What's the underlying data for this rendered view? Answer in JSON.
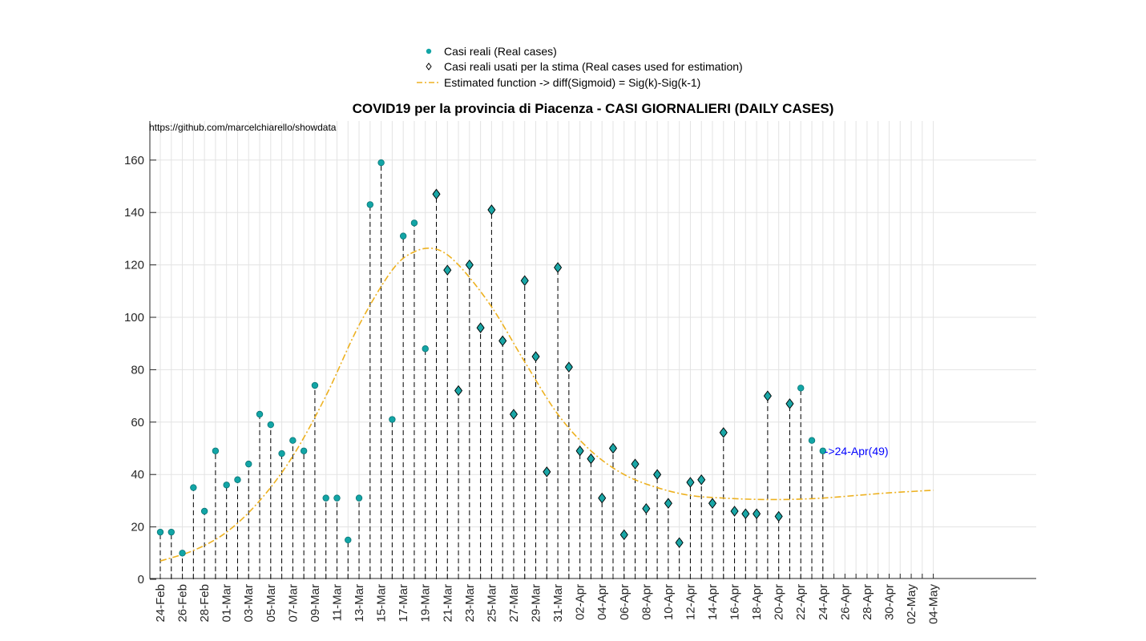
{
  "chart_data": {
    "type": "scatter",
    "title": "COVID19 per la provincia di Piacenza - CASI GIORNALIERI (DAILY CASES)",
    "source_text": "https://github.com/marcelchiarello/showdata",
    "xlabel": "",
    "ylabel": "",
    "ylim": [
      0,
      175
    ],
    "yticks": [
      0,
      20,
      40,
      60,
      80,
      100,
      120,
      140,
      160
    ],
    "grid": true,
    "legend_position": "top-center, outside plot",
    "x_start": "24-Feb",
    "x_end": "04-May",
    "x_tick_labels": [
      "24-Feb",
      "26-Feb",
      "28-Feb",
      "01-Mar",
      "03-Mar",
      "05-Mar",
      "07-Mar",
      "09-Mar",
      "11-Mar",
      "13-Mar",
      "15-Mar",
      "17-Mar",
      "19-Mar",
      "21-Mar",
      "23-Mar",
      "25-Mar",
      "27-Mar",
      "29-Mar",
      "31-Mar",
      "02-Apr",
      "04-Apr",
      "06-Apr",
      "08-Apr",
      "10-Apr",
      "12-Apr",
      "14-Apr",
      "16-Apr",
      "18-Apr",
      "20-Apr",
      "22-Apr",
      "24-Apr",
      "26-Apr",
      "28-Apr",
      "30-Apr",
      "02-May",
      "04-May"
    ],
    "legend": [
      {
        "label": "Casi reali (Real cases)",
        "marker": "dot"
      },
      {
        "label": "Casi reali usati per la stima (Real cases used for estimation)",
        "marker": "diamond"
      },
      {
        "label": "Estimated function -> diff(Sigmoid) = Sig(k)-Sig(k-1)",
        "marker": "dashdot-line"
      }
    ],
    "series": [
      {
        "name": "Casi reali (Real cases)",
        "x": [
          "24-Feb",
          "25-Feb",
          "26-Feb",
          "27-Feb",
          "28-Feb",
          "29-Feb",
          "01-Mar",
          "02-Mar",
          "03-Mar",
          "04-Mar",
          "05-Mar",
          "06-Mar",
          "07-Mar",
          "08-Mar",
          "09-Mar",
          "10-Mar",
          "11-Mar",
          "12-Mar",
          "13-Mar",
          "14-Mar",
          "15-Mar",
          "16-Mar",
          "17-Mar",
          "18-Mar",
          "19-Mar",
          "20-Mar",
          "21-Mar",
          "22-Mar",
          "23-Mar",
          "24-Mar",
          "25-Mar",
          "26-Mar",
          "27-Mar",
          "28-Mar",
          "29-Mar",
          "30-Mar",
          "31-Mar",
          "01-Apr",
          "02-Apr",
          "03-Apr",
          "04-Apr",
          "05-Apr",
          "06-Apr",
          "07-Apr",
          "08-Apr",
          "09-Apr",
          "10-Apr",
          "11-Apr",
          "12-Apr",
          "13-Apr",
          "14-Apr",
          "15-Apr",
          "16-Apr",
          "17-Apr",
          "18-Apr",
          "19-Apr",
          "20-Apr",
          "21-Apr",
          "22-Apr",
          "23-Apr",
          "24-Apr"
        ],
        "values": [
          18,
          18,
          10,
          35,
          26,
          49,
          36,
          38,
          44,
          63,
          59,
          48,
          53,
          49,
          74,
          31,
          31,
          15,
          31,
          143,
          159,
          61,
          131,
          136,
          88,
          147,
          118,
          72,
          120,
          96,
          141,
          91,
          63,
          114,
          85,
          41,
          119,
          81,
          49,
          46,
          31,
          50,
          17,
          44,
          27,
          40,
          29,
          14,
          37,
          38,
          29,
          56,
          26,
          25,
          25,
          70,
          24,
          67,
          73,
          53,
          49
        ]
      },
      {
        "name": "Casi reali usati per la stima (Real cases used for estimation)",
        "x": [
          "20-Mar",
          "21-Mar",
          "22-Mar",
          "23-Mar",
          "24-Mar",
          "25-Mar",
          "26-Mar",
          "27-Mar",
          "28-Mar",
          "29-Mar",
          "30-Mar",
          "31-Mar",
          "01-Apr",
          "02-Apr",
          "03-Apr",
          "04-Apr",
          "05-Apr",
          "06-Apr",
          "07-Apr",
          "08-Apr",
          "09-Apr",
          "10-Apr",
          "11-Apr",
          "12-Apr",
          "13-Apr",
          "14-Apr",
          "15-Apr",
          "16-Apr",
          "17-Apr",
          "18-Apr",
          "19-Apr",
          "20-Apr",
          "21-Apr"
        ],
        "values": [
          147,
          118,
          72,
          120,
          96,
          141,
          91,
          63,
          114,
          85,
          41,
          119,
          81,
          49,
          46,
          31,
          50,
          17,
          44,
          27,
          40,
          29,
          14,
          37,
          38,
          29,
          56,
          26,
          25,
          25,
          70,
          24,
          67
        ]
      },
      {
        "name": "Estimated function -> diff(Sigmoid) = Sig(k)-Sig(k-1)",
        "x": [
          "24-Feb",
          "27-Feb",
          "01-Mar",
          "04-Mar",
          "07-Mar",
          "10-Mar",
          "13-Mar",
          "16-Mar",
          "18-Mar",
          "20-Mar",
          "22-Mar",
          "25-Mar",
          "28-Mar",
          "31-Mar",
          "03-Apr",
          "06-Apr",
          "09-Apr",
          "12-Apr",
          "15-Apr",
          "18-Apr",
          "21-Apr",
          "24-Apr",
          "27-Apr",
          "30-Apr",
          "04-May"
        ],
        "values": [
          7,
          11,
          18,
          30,
          47,
          70,
          97,
          118,
          125,
          126,
          120,
          104,
          83,
          63,
          49,
          40,
          35,
          32,
          31,
          30.5,
          30.5,
          31,
          32,
          33,
          34
        ]
      }
    ],
    "annotation": {
      "text": "->24-Apr(49)",
      "x": "24-Apr",
      "y": 49
    }
  },
  "colors": {
    "real_cases": "#12a5a6",
    "real_cases_edge": "#0b7475",
    "estimation_diamond": "#1aa6a6",
    "estimated_function": "#edb120",
    "stem": "#000000",
    "annotation": "#0000ff",
    "grid": "#e3e3e3",
    "axis": "#262626"
  }
}
